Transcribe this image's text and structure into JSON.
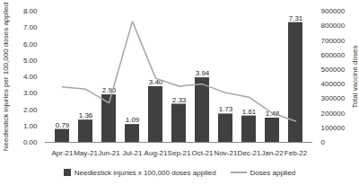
{
  "chart_data": {
    "type": "bar",
    "categories": [
      "Apr-21",
      "May-21",
      "Jun-21",
      "Jul-21",
      "Aug-21",
      "Sep-21",
      "Oct-21",
      "Nov-21",
      "Dec-21",
      "Jan-22",
      "Feb-22"
    ],
    "series": [
      {
        "name": "Needlestick injuries x 100,000 doses applied",
        "type": "bar",
        "color": "#404040",
        "values": [
          0.79,
          1.36,
          2.9,
          1.09,
          3.4,
          2.33,
          3.94,
          1.73,
          1.61,
          1.48,
          7.31
        ],
        "value_labels": [
          "0.79",
          "1.36",
          "2.90",
          "1.09",
          "3.40",
          "2.33",
          "3.94",
          "1.73",
          "1.61",
          "1.48",
          "7.31"
        ]
      },
      {
        "name": "Doses applied",
        "type": "line",
        "color": "#a6a6a6",
        "axis": "y2",
        "values": [
          380000,
          365000,
          270000,
          830000,
          440000,
          385000,
          400000,
          340000,
          310000,
          200000,
          145000
        ]
      }
    ],
    "y_label": "Needlestick injuries per 100,000 doses applied",
    "y2_label": "Total vaccine doses",
    "ylim": [
      0,
      8
    ],
    "yticks": [
      {
        "value": 0,
        "label": "0.00"
      },
      {
        "value": 1,
        "label": "1.00"
      },
      {
        "value": 2,
        "label": "2.00"
      },
      {
        "value": 3,
        "label": "3.00"
      },
      {
        "value": 4,
        "label": "4.00"
      },
      {
        "value": 5,
        "label": "5.00"
      },
      {
        "value": 6,
        "label": "6.00"
      },
      {
        "value": 7,
        "label": "7.00"
      },
      {
        "value": 8,
        "label": "8.00"
      }
    ],
    "y2lim": [
      0,
      900000
    ],
    "y2ticks": [
      0,
      100000,
      200000,
      300000,
      400000,
      500000,
      600000,
      700000,
      800000,
      900000
    ],
    "data_labels": true,
    "legend": "bottom"
  }
}
